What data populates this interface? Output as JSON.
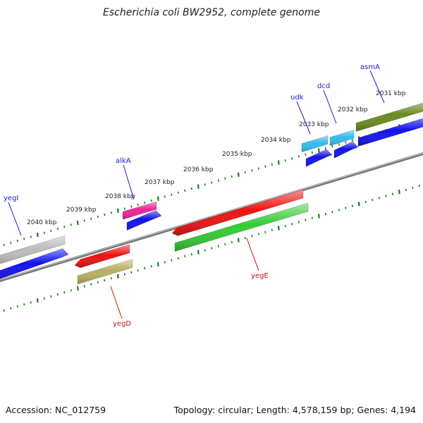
{
  "title": "Escherichia coli BW2952, complete genome",
  "footer": {
    "accession": "Accession: NC_012759",
    "summary": "Topology: circular; Length: 4,578,159 bp; Genes: 4,194"
  },
  "colors": {
    "backbone": "#777777",
    "tick": "#1a7a1a",
    "forward_label": "#1a1acc",
    "reverse_label": "#cc1111"
  },
  "ticks": [
    {
      "label": "2031 kbp"
    },
    {
      "label": "2032 kbp"
    },
    {
      "label": "2033 kbp"
    },
    {
      "label": "2034 kbp"
    },
    {
      "label": "2035 kbp"
    },
    {
      "label": "2036 kbp"
    },
    {
      "label": "2037 kbp"
    },
    {
      "label": "2038 kbp"
    },
    {
      "label": "2039 kbp"
    },
    {
      "label": "2040 kbp"
    }
  ],
  "genes": [
    {
      "name": "asmA",
      "strand": "forward",
      "color": "#6b8a1f"
    },
    {
      "name": "dcd",
      "strand": "forward",
      "color": "#33bbee"
    },
    {
      "name": "udk",
      "strand": "forward",
      "color": "#33bbee"
    },
    {
      "name": "alkA",
      "strand": "forward",
      "color": "#ee2299"
    },
    {
      "name": "yegI",
      "strand": "forward",
      "color": "#bbbbbb"
    },
    {
      "name": "yegE",
      "strand": "reverse",
      "color": "#ee1111"
    },
    {
      "name": "yegD",
      "strand": "reverse",
      "color": "#ee1111"
    }
  ],
  "cds": [
    {
      "strand": "forward",
      "color": "#1111ee"
    },
    {
      "strand": "reverse",
      "color": "#33cc33"
    },
    {
      "strand": "reverse",
      "color": "#b8b060"
    }
  ]
}
